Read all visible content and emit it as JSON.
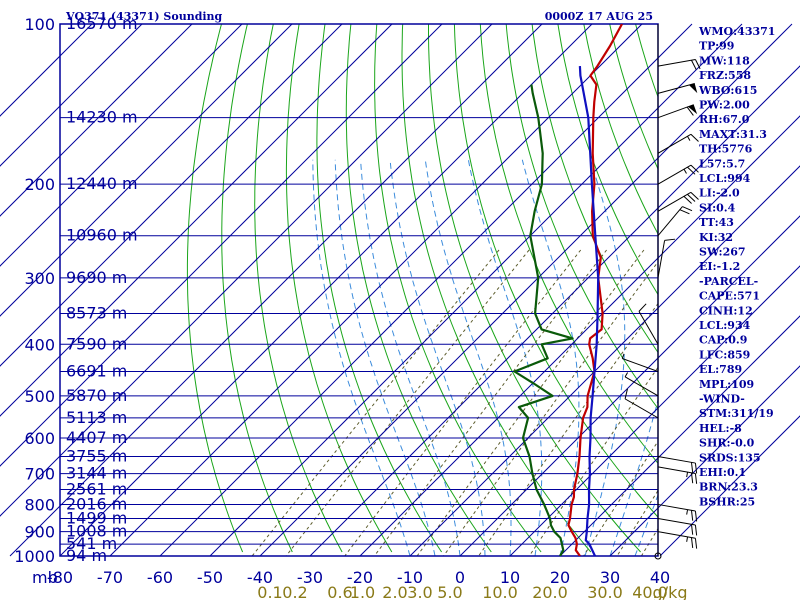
{
  "title": "VQ371 (43371) Sounding",
  "timestamp": "0000Z 17 AUG 25",
  "units_label": "mb",
  "colors": {
    "axis": "#00009c",
    "temperature": "#c00000",
    "dewpoint": "#0a5a0a",
    "parcel": "#1010c0",
    "dry_adiabat": "#1aa51a",
    "moist_adiabat": "#3c8cdc",
    "mixing_ratio": "#5c5c2c",
    "mixing_label": "#8a7a18"
  },
  "chart_data": {
    "type": "skew-t",
    "pressure_levels": [
      100,
      200,
      300,
      400,
      500,
      600,
      700,
      800,
      900,
      1000
    ],
    "pressure_tick_labels": [
      "100",
      "200",
      "300",
      "400",
      "500",
      "600",
      "700",
      "800",
      "900",
      "1000"
    ],
    "temperature_ticks": [
      -80,
      -70,
      -60,
      -50,
      -40,
      -30,
      -20,
      -10,
      0,
      10,
      20,
      30,
      40
    ],
    "temperature_tick_labels": [
      "-80",
      "-70",
      "-60",
      "-50",
      "-40",
      "-30",
      "-20",
      "-10",
      "0",
      "10",
      "20",
      "30",
      "40"
    ],
    "mixing_ratio_labels": [
      {
        "label": "0.1",
        "t": -38
      },
      {
        "label": "0.2",
        "t": -33
      },
      {
        "label": "0.6",
        "t": -24
      },
      {
        "label": "1.0",
        "t": -19.5
      },
      {
        "label": "2.0",
        "t": -13
      },
      {
        "label": "3.0",
        "t": -8
      },
      {
        "label": "5.0",
        "t": -2
      },
      {
        "label": "10.0",
        "t": 8
      },
      {
        "label": "20.0",
        "t": 18
      },
      {
        "label": "30.0",
        "t": 29
      },
      {
        "label": "40.0",
        "t": 38
      },
      {
        "label": "g/kg",
        "t": 42
      }
    ],
    "height_labels": [
      {
        "p": 100,
        "label": "16570 m"
      },
      {
        "p": 150,
        "label": "14230 m"
      },
      {
        "p": 200,
        "label": "12440 m"
      },
      {
        "p": 250,
        "label": "10960 m"
      },
      {
        "p": 300,
        "label": "9690 m"
      },
      {
        "p": 350,
        "label": "8573 m"
      },
      {
        "p": 400,
        "label": "7590 m"
      },
      {
        "p": 450,
        "label": "6691 m"
      },
      {
        "p": 500,
        "label": "5870 m"
      },
      {
        "p": 550,
        "label": "5113 m"
      },
      {
        "p": 600,
        "label": "4407 m"
      },
      {
        "p": 650,
        "label": "3755 m"
      },
      {
        "p": 700,
        "label": "3144 m"
      },
      {
        "p": 750,
        "label": "2561 m"
      },
      {
        "p": 800,
        "label": "2016 m"
      },
      {
        "p": 850,
        "label": "1499 m"
      },
      {
        "p": 900,
        "label": "1008 m"
      },
      {
        "p": 950,
        "label": "541 m"
      },
      {
        "p": 1000,
        "label": "94 m"
      }
    ],
    "series": [
      {
        "key": "temperature",
        "points": [
          {
            "p": 1000,
            "t": 24
          },
          {
            "p": 975,
            "t": 22
          },
          {
            "p": 950,
            "t": 21
          },
          {
            "p": 925,
            "t": 19.5
          },
          {
            "p": 900,
            "t": 17.5
          },
          {
            "p": 875,
            "t": 15.5
          },
          {
            "p": 850,
            "t": 14.5
          },
          {
            "p": 800,
            "t": 12
          },
          {
            "p": 775,
            "t": 11
          },
          {
            "p": 750,
            "t": 9.5
          },
          {
            "p": 700,
            "t": 7
          },
          {
            "p": 650,
            "t": 4
          },
          {
            "p": 600,
            "t": 0.5
          },
          {
            "p": 550,
            "t": -3
          },
          {
            "p": 525,
            "t": -4.3
          },
          {
            "p": 500,
            "t": -6.5
          },
          {
            "p": 450,
            "t": -10
          },
          {
            "p": 425,
            "t": -13
          },
          {
            "p": 400,
            "t": -16.5
          },
          {
            "p": 390,
            "t": -17.5
          },
          {
            "p": 375,
            "t": -17
          },
          {
            "p": 350,
            "t": -20
          },
          {
            "p": 300,
            "t": -28
          },
          {
            "p": 275,
            "t": -31.5
          },
          {
            "p": 250,
            "t": -37.5
          },
          {
            "p": 225,
            "t": -42.5
          },
          {
            "p": 200,
            "t": -47.5
          },
          {
            "p": 175,
            "t": -54
          },
          {
            "p": 150,
            "t": -61
          },
          {
            "p": 140,
            "t": -64
          },
          {
            "p": 130,
            "t": -67
          },
          {
            "p": 125,
            "t": -70
          },
          {
            "p": 120,
            "t": -70.5
          },
          {
            "p": 110,
            "t": -72
          },
          {
            "p": 100,
            "t": -74
          }
        ]
      },
      {
        "key": "dewpoint",
        "points": [
          {
            "p": 1000,
            "t": 20
          },
          {
            "p": 975,
            "t": 19.5
          },
          {
            "p": 950,
            "t": 18
          },
          {
            "p": 925,
            "t": 16.5
          },
          {
            "p": 900,
            "t": 14
          },
          {
            "p": 875,
            "t": 12
          },
          {
            "p": 850,
            "t": 10.5
          },
          {
            "p": 800,
            "t": 6.5
          },
          {
            "p": 750,
            "t": 2
          },
          {
            "p": 700,
            "t": -2
          },
          {
            "p": 650,
            "t": -6
          },
          {
            "p": 600,
            "t": -11
          },
          {
            "p": 550,
            "t": -14
          },
          {
            "p": 525,
            "t": -18
          },
          {
            "p": 500,
            "t": -13.5
          },
          {
            "p": 475,
            "t": -19.5
          },
          {
            "p": 450,
            "t": -26
          },
          {
            "p": 425,
            "t": -22
          },
          {
            "p": 400,
            "t": -26
          },
          {
            "p": 390,
            "t": -21
          },
          {
            "p": 375,
            "t": -29
          },
          {
            "p": 350,
            "t": -33.5
          },
          {
            "p": 300,
            "t": -40
          },
          {
            "p": 250,
            "t": -50
          },
          {
            "p": 225,
            "t": -54
          },
          {
            "p": 200,
            "t": -58
          },
          {
            "p": 175,
            "t": -64
          },
          {
            "p": 150,
            "t": -72
          },
          {
            "p": 135,
            "t": -78
          },
          {
            "p": 130,
            "t": -80
          }
        ]
      },
      {
        "key": "parcel",
        "points": [
          {
            "p": 1000,
            "t": 27
          },
          {
            "p": 950,
            "t": 23.5
          },
          {
            "p": 934,
            "t": 22
          },
          {
            "p": 900,
            "t": 20.5
          },
          {
            "p": 850,
            "t": 18
          },
          {
            "p": 800,
            "t": 15.5
          },
          {
            "p": 750,
            "t": 12.5
          },
          {
            "p": 700,
            "t": 9.5
          },
          {
            "p": 650,
            "t": 6
          },
          {
            "p": 600,
            "t": 2.5
          },
          {
            "p": 550,
            "t": -1.5
          },
          {
            "p": 500,
            "t": -5.5
          },
          {
            "p": 450,
            "t": -10
          },
          {
            "p": 400,
            "t": -15
          },
          {
            "p": 350,
            "t": -21
          },
          {
            "p": 300,
            "t": -28
          },
          {
            "p": 250,
            "t": -37
          },
          {
            "p": 200,
            "t": -48
          },
          {
            "p": 150,
            "t": -62
          },
          {
            "p": 125,
            "t": -72
          },
          {
            "p": 120,
            "t": -74
          }
        ]
      }
    ],
    "wind_barbs": [
      {
        "p": 120,
        "dir": 80,
        "spd": 20
      },
      {
        "p": 135,
        "dir": 75,
        "spd": 50
      },
      {
        "p": 150,
        "dir": 70,
        "spd": 60
      },
      {
        "p": 175,
        "dir": 60,
        "spd": 15
      },
      {
        "p": 200,
        "dir": 60,
        "spd": 25
      },
      {
        "p": 225,
        "dir": 60,
        "spd": 30
      },
      {
        "p": 250,
        "dir": 40,
        "spd": 20
      },
      {
        "p": 300,
        "dir": 10,
        "spd": 10
      },
      {
        "p": 400,
        "dir": 330,
        "spd": 10
      },
      {
        "p": 450,
        "dir": 290,
        "spd": 5
      },
      {
        "p": 500,
        "dir": 300,
        "spd": 5
      },
      {
        "p": 550,
        "dir": 300,
        "spd": 10
      },
      {
        "p": 650,
        "dir": 100,
        "spd": 20
      },
      {
        "p": 680,
        "dir": 100,
        "spd": 25
      },
      {
        "p": 800,
        "dir": 100,
        "spd": 25
      },
      {
        "p": 850,
        "dir": 100,
        "spd": 20
      },
      {
        "p": 900,
        "dir": 100,
        "spd": 25
      },
      {
        "p": 1000,
        "dir": 0,
        "spd": 0
      }
    ],
    "indices": [
      {
        "key": "WMO",
        "value": "43371"
      },
      {
        "key": "TP",
        "value": "99"
      },
      {
        "key": "MW",
        "value": "118"
      },
      {
        "key": "FRZ",
        "value": "558"
      },
      {
        "key": "WBO",
        "value": "615"
      },
      {
        "key": "PW",
        "value": "2.00"
      },
      {
        "key": "RH",
        "value": "67.0"
      },
      {
        "key": "MAXT",
        "value": "31.3"
      },
      {
        "key": "TH",
        "value": "5776"
      },
      {
        "key": "L57",
        "value": "5.7"
      },
      {
        "key": "LCL",
        "value": "994"
      },
      {
        "key": "LI",
        "value": "-2.0"
      },
      {
        "key": "SI",
        "value": "0.4"
      },
      {
        "key": "TT",
        "value": "43"
      },
      {
        "key": "KI",
        "value": "32"
      },
      {
        "key": "SW",
        "value": "267"
      },
      {
        "key": "EI",
        "value": "-1.2"
      }
    ],
    "parcel_header": "-PARCEL-",
    "parcel_indices": [
      {
        "key": "CAPE",
        "value": "571"
      },
      {
        "key": "CINH",
        "value": "12"
      },
      {
        "key": "LCL",
        "value": "934"
      },
      {
        "key": "CAP",
        "value": "0.9"
      },
      {
        "key": "LFC",
        "value": "859"
      },
      {
        "key": "EL",
        "value": "789"
      },
      {
        "key": "MPL",
        "value": "109"
      }
    ],
    "wind_header": "-WIND-",
    "wind_indices": [
      {
        "key": "STM",
        "value": "311/19"
      },
      {
        "key": "HEL",
        "value": "-8"
      },
      {
        "key": "SHR",
        "value": "-0.0"
      },
      {
        "key": "SRDS",
        "value": "135"
      },
      {
        "key": "EHI",
        "value": "0.1"
      },
      {
        "key": "BRN",
        "value": "23.3"
      },
      {
        "key": "BSHR",
        "value": "25"
      }
    ]
  }
}
